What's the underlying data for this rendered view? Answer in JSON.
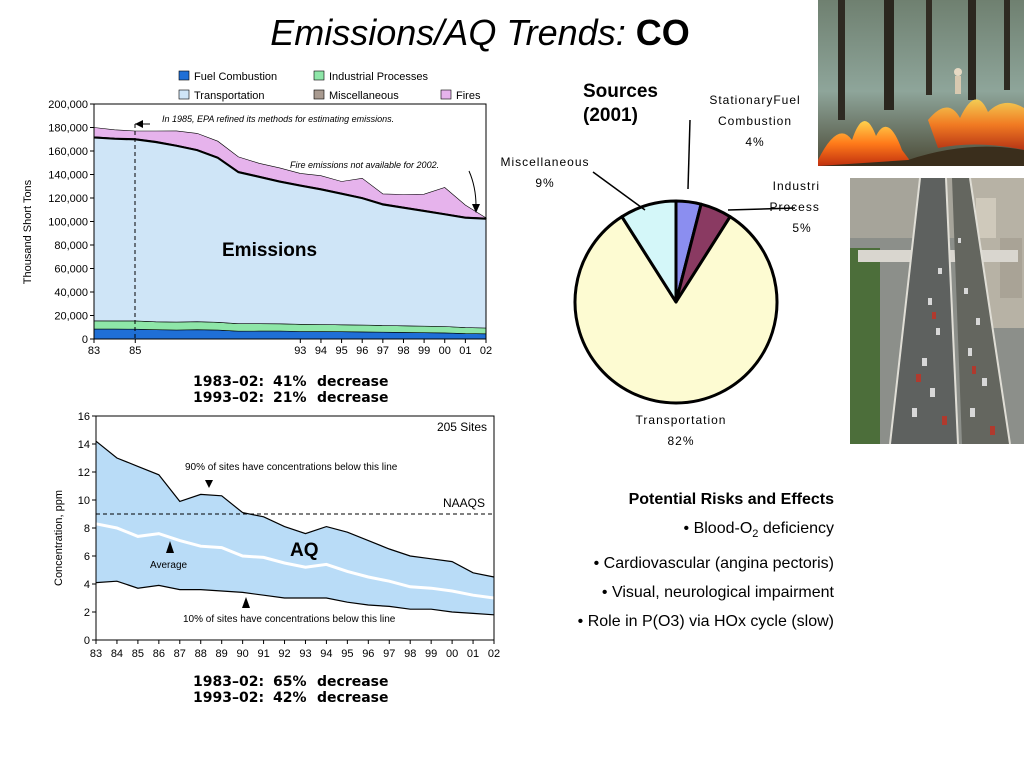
{
  "title": {
    "prefix": "Emissions/AQ Trends:",
    "pollutant": "CO"
  },
  "emissions_stats": [
    {
      "period": "1983–02:",
      "pct": "41%",
      "word": "decrease"
    },
    {
      "period": "1993–02:",
      "pct": "21%",
      "word": "decrease"
    }
  ],
  "aq_stats": [
    {
      "period": "1983–02:",
      "pct": "65%",
      "word": "decrease"
    },
    {
      "period": "1993–02:",
      "pct": "42%",
      "word": "decrease"
    }
  ],
  "sources": {
    "title_line1": "Sources",
    "title_line2": "(2001)"
  },
  "risks": {
    "heading": "Potential Risks and Effects",
    "item1_prefix": "• Blood-O",
    "item1_sub": "2",
    "item1_suffix": " deficiency",
    "items": [
      "• Cardiovascular (angina pectoris)",
      "• Visual, neurological impairment",
      "• Role in P(O3) via HOx cycle (slow)"
    ]
  },
  "photos": {
    "fire": "forest-fire-photo",
    "highway": "highway-traffic-photo"
  },
  "chart_data": [
    {
      "type": "area",
      "stacked": true,
      "label": "Emissions",
      "ylabel": "Thousand Short Tons",
      "ylim": [
        0,
        200000
      ],
      "yticks": [
        "0",
        "20,000",
        "40,000",
        "60,000",
        "80,000",
        "100,000",
        "120,000",
        "140,000",
        "160,000",
        "180,000",
        "200,000"
      ],
      "x": [
        1983,
        1984,
        1985,
        1986,
        1987,
        1988,
        1989,
        1990,
        1991,
        1992,
        1993,
        1994,
        1995,
        1996,
        1997,
        1998,
        1999,
        2000,
        2001,
        2002
      ],
      "x_tick_values": [
        1983,
        1985,
        1993,
        1994,
        1995,
        1996,
        1997,
        1998,
        1999,
        2000,
        2001,
        2002
      ],
      "x_tick_labels": [
        "83",
        "85",
        "93",
        "94",
        "95",
        "96",
        "97",
        "98",
        "99",
        "00",
        "01",
        "02"
      ],
      "legend_placement": "top",
      "colors": {
        "Fuel Combustion": "#1f6fd6",
        "Industrial Processes": "#8ee6a8",
        "Transportation": "#cfe5f7",
        "Miscellaneous": "#a89a90",
        "Fires": "#e6b3ec"
      },
      "series": [
        {
          "name": "Fuel Combustion",
          "values": [
            8500,
            8400,
            8300,
            7900,
            7700,
            7900,
            7600,
            6600,
            6700,
            6700,
            6400,
            6300,
            6200,
            6000,
            5800,
            5600,
            5400,
            5200,
            4600,
            4400
          ]
        },
        {
          "name": "Industrial Processes",
          "values": [
            7000,
            7000,
            7100,
            6700,
            6700,
            6800,
            6600,
            6400,
            6300,
            6200,
            6100,
            6000,
            5900,
            5800,
            5700,
            5600,
            5500,
            5400,
            5100,
            5000
          ]
        },
        {
          "name": "Transportation",
          "values": [
            156000,
            155000,
            154500,
            153000,
            150000,
            146000,
            140000,
            129000,
            125000,
            121000,
            118000,
            115000,
            111500,
            108000,
            103000,
            100500,
            98000,
            95500,
            93500,
            93000
          ]
        },
        {
          "name": "Miscellaneous",
          "values": [
            700,
            700,
            700,
            700,
            700,
            700,
            700,
            700,
            700,
            700,
            700,
            700,
            700,
            700,
            700,
            700,
            700,
            700,
            700,
            700
          ]
        },
        {
          "name": "Fires",
          "values": [
            7800,
            6900,
            6400,
            8700,
            12000,
            13600,
            13400,
            12300,
            10800,
            11000,
            9700,
            11000,
            9700,
            16300,
            8300,
            10600,
            13600,
            22100,
            10100,
            0
          ]
        }
      ],
      "annotations": [
        "In 1985, EPA refined its methods for estimating emissions.",
        "Fire emissions not available for 2002."
      ]
    },
    {
      "type": "pie",
      "title": "Sources (2001)",
      "slices": [
        {
          "label": "Stationary Fuel Combustion",
          "value": 4,
          "color": "#8b8ef0"
        },
        {
          "label": "Industrial Processes",
          "value": 5,
          "color": "#8a3a62"
        },
        {
          "label": "Transportation",
          "value": 82,
          "color": "#fdfbd2"
        },
        {
          "label": "Miscellaneous",
          "value": 9,
          "color": "#d4f7f9"
        }
      ],
      "label_lines": {
        "Stationary Fuel Combustion": [
          "StationaryFuel",
          "Combustion",
          "4%"
        ],
        "Industrial Processes": [
          "Industrial",
          "Processes",
          "5%"
        ],
        "Transportation": [
          "Transportation",
          "82%"
        ],
        "Miscellaneous": [
          "Miscellaneous",
          "9%"
        ]
      }
    },
    {
      "type": "area",
      "label": "AQ",
      "ylabel": "Concentration, ppm",
      "ylim": [
        0,
        16
      ],
      "yticks": [
        "0",
        "2",
        "4",
        "6",
        "8",
        "10",
        "12",
        "14",
        "16"
      ],
      "x": [
        1983,
        1984,
        1985,
        1986,
        1987,
        1988,
        1989,
        1990,
        1991,
        1992,
        1993,
        1994,
        1995,
        1996,
        1997,
        1998,
        1999,
        2000,
        2001,
        2002
      ],
      "x_tick_labels": [
        "83",
        "84",
        "85",
        "86",
        "87",
        "88",
        "89",
        "90",
        "91",
        "92",
        "93",
        "94",
        "95",
        "96",
        "97",
        "98",
        "99",
        "00",
        "01",
        "02"
      ],
      "sites_label": "205 Sites",
      "naaqs_label": "NAAQS",
      "naaqs_value": 9,
      "series": [
        {
          "name": "90% of sites have concentrations below this line",
          "values": [
            14.2,
            13.0,
            12.4,
            11.8,
            9.9,
            10.4,
            10.3,
            9.1,
            8.8,
            8.1,
            7.6,
            8.1,
            7.7,
            7.1,
            6.5,
            6.0,
            5.8,
            5.6,
            4.8,
            4.5
          ]
        },
        {
          "name": "Average",
          "values": [
            8.3,
            8.0,
            7.4,
            7.6,
            7.1,
            6.7,
            6.6,
            6.0,
            5.9,
            5.5,
            5.2,
            5.4,
            4.9,
            4.5,
            4.2,
            3.8,
            3.7,
            3.5,
            3.2,
            3.0
          ]
        },
        {
          "name": "10% of sites have concentrations below this line",
          "values": [
            4.1,
            4.2,
            3.7,
            3.9,
            3.6,
            3.6,
            3.5,
            3.4,
            3.2,
            3.0,
            3.0,
            3.0,
            2.7,
            2.5,
            2.4,
            2.2,
            2.2,
            2.0,
            1.9,
            1.8
          ]
        }
      ]
    }
  ]
}
